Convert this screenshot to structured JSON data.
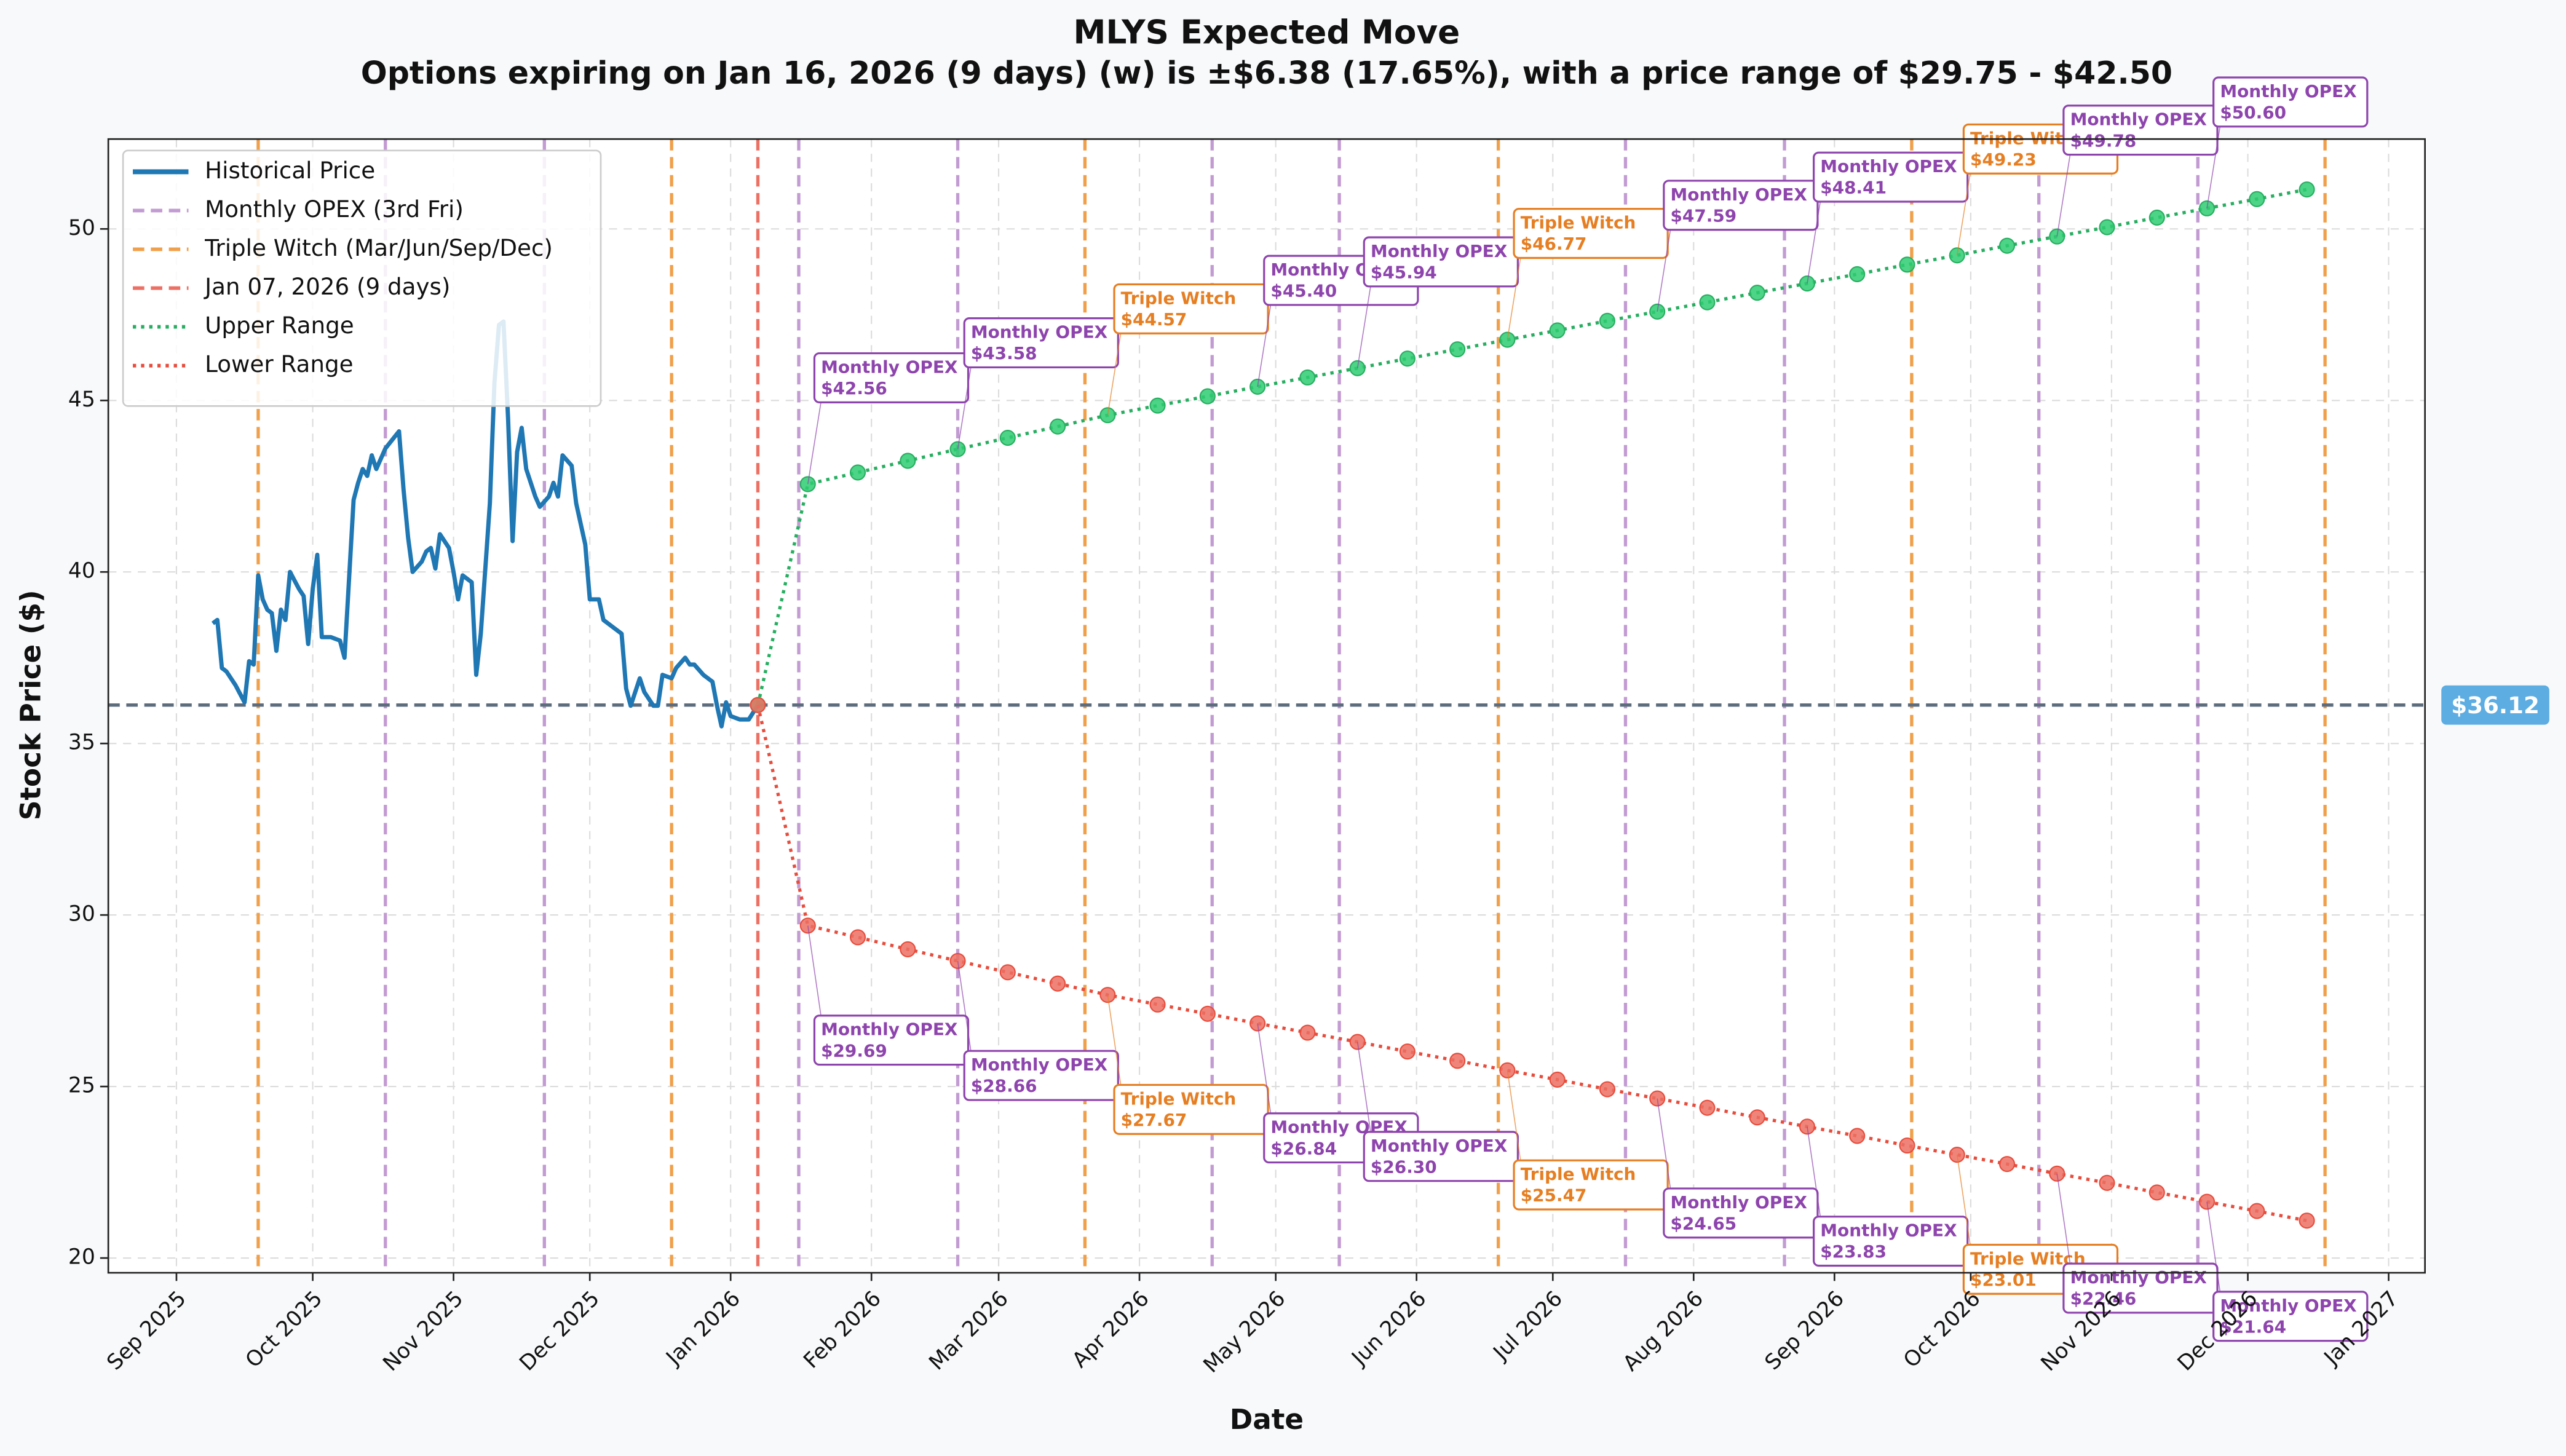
{
  "chart_data": {
    "type": "line",
    "title": "MLYS Expected Move",
    "subtitle": "Options expiring on Jan 16, 2026 (9 days) (w) is ±$6.38 (17.65%), with a price range of $29.75 - $42.50",
    "x_label": "Date",
    "y_label": "Stock Price ($)",
    "xlim": [
      "2025-08-17",
      "2027-01-09"
    ],
    "xticks": [
      {
        "value": "2025-09-01",
        "label": "Sep 2025"
      },
      {
        "value": "2025-10-01",
        "label": "Oct 2025"
      },
      {
        "value": "2025-11-01",
        "label": "Nov 2025"
      },
      {
        "value": "2025-12-01",
        "label": "Dec 2025"
      },
      {
        "value": "2026-01-01",
        "label": "Jan 2026"
      },
      {
        "value": "2026-02-01",
        "label": "Feb 2026"
      },
      {
        "value": "2026-03-01",
        "label": "Mar 2026"
      },
      {
        "value": "2026-04-01",
        "label": "Apr 2026"
      },
      {
        "value": "2026-05-01",
        "label": "May 2026"
      },
      {
        "value": "2026-06-01",
        "label": "Jun 2026"
      },
      {
        "value": "2026-07-01",
        "label": "Jul 2026"
      },
      {
        "value": "2026-08-01",
        "label": "Aug 2026"
      },
      {
        "value": "2026-09-01",
        "label": "Sep 2026"
      },
      {
        "value": "2026-10-01",
        "label": "Oct 2026"
      },
      {
        "value": "2026-11-01",
        "label": "Nov 2026"
      },
      {
        "value": "2026-12-01",
        "label": "Dec 2026"
      },
      {
        "value": "2027-01-01",
        "label": "Jan 2027"
      }
    ],
    "ylim": [
      19.57,
      52.62
    ],
    "yticks": [
      20,
      25,
      30,
      35,
      40,
      45,
      50
    ],
    "grid": true,
    "legend": "upper left",
    "current_price": 36.12,
    "current_price_label": "$36.12",
    "current_price_color": "#5d6d7e",
    "current_price_label_color": "#5dade2",
    "label_styles": {
      "Monthly OPEX": "#8e44ad",
      "Triple Witch": "#e67e22"
    },
    "series": [
      {
        "name": "Historical Price",
        "color": "#1f77b4",
        "style": "solid",
        "x": [
          "2025-09-09",
          "2025-09-10",
          "2025-09-11",
          "2025-09-12",
          "2025-09-14",
          "2025-09-16",
          "2025-09-17",
          "2025-09-18",
          "2025-09-19",
          "2025-09-20",
          "2025-09-21",
          "2025-09-22",
          "2025-09-23",
          "2025-09-24",
          "2025-09-25",
          "2025-09-26",
          "2025-09-28",
          "2025-09-29",
          "2025-09-30",
          "2025-10-01",
          "2025-10-02",
          "2025-10-03",
          "2025-10-05",
          "2025-10-07",
          "2025-10-08",
          "2025-10-10",
          "2025-10-11",
          "2025-10-12",
          "2025-10-13",
          "2025-10-14",
          "2025-10-15",
          "2025-10-17",
          "2025-10-20",
          "2025-10-21",
          "2025-10-22",
          "2025-10-23",
          "2025-10-25",
          "2025-10-26",
          "2025-10-27",
          "2025-10-28",
          "2025-10-29",
          "2025-10-31",
          "2025-11-01",
          "2025-11-02",
          "2025-11-03",
          "2025-11-05",
          "2025-11-06",
          "2025-11-07",
          "2025-11-09",
          "2025-11-10",
          "2025-11-11",
          "2025-11-12",
          "2025-11-13",
          "2025-11-14",
          "2025-11-15",
          "2025-11-16",
          "2025-11-17",
          "2025-11-19",
          "2025-11-20",
          "2025-11-22",
          "2025-11-23",
          "2025-11-24",
          "2025-11-25",
          "2025-11-27",
          "2025-11-28",
          "2025-11-30",
          "2025-12-01",
          "2025-12-03",
          "2025-12-04",
          "2025-12-06",
          "2025-12-08",
          "2025-12-09",
          "2025-12-10",
          "2025-12-12",
          "2025-12-13",
          "2025-12-15",
          "2025-12-16",
          "2025-12-17",
          "2025-12-19",
          "2025-12-20",
          "2025-12-22",
          "2025-12-23",
          "2025-12-24",
          "2025-12-26",
          "2025-12-28",
          "2025-12-29",
          "2025-12-30",
          "2025-12-31",
          "2026-01-01",
          "2026-01-03",
          "2026-01-05",
          "2026-01-07"
        ],
        "values": [
          38.5,
          38.6,
          37.2,
          37.1,
          36.7,
          36.2,
          37.4,
          37.3,
          39.9,
          39.2,
          38.9,
          38.8,
          37.7,
          38.9,
          38.6,
          40.0,
          39.5,
          39.3,
          37.9,
          39.5,
          40.5,
          38.1,
          38.1,
          38.0,
          37.5,
          42.1,
          42.6,
          43.0,
          42.8,
          43.4,
          43.0,
          43.6,
          44.1,
          42.4,
          41.0,
          40.0,
          40.3,
          40.6,
          40.7,
          40.1,
          41.1,
          40.7,
          40.0,
          39.2,
          39.9,
          39.7,
          37.0,
          38.2,
          42.0,
          45.5,
          47.2,
          47.3,
          44.5,
          40.9,
          43.5,
          44.2,
          43.0,
          42.2,
          41.9,
          42.2,
          42.6,
          42.2,
          43.4,
          43.1,
          42.0,
          40.8,
          39.2,
          39.2,
          38.6,
          38.4,
          38.2,
          36.6,
          36.1,
          36.9,
          36.5,
          36.1,
          36.1,
          37.0,
          36.9,
          37.2,
          37.5,
          37.3,
          37.3,
          37.0,
          36.8,
          36.1,
          35.5,
          36.2,
          35.8,
          35.7,
          35.7,
          36.12
        ]
      },
      {
        "name": "Upper Range",
        "color": "#27ae60",
        "marker_color": "#2ecc71",
        "style": "dotted",
        "x": [
          "2026-01-07",
          "2026-01-18",
          "2026-01-29",
          "2026-02-09",
          "2026-02-20",
          "2026-03-03",
          "2026-03-14",
          "2026-03-25",
          "2026-04-05",
          "2026-04-16",
          "2026-04-27",
          "2026-05-08",
          "2026-05-19",
          "2026-05-30",
          "2026-06-10",
          "2026-06-21",
          "2026-07-02",
          "2026-07-13",
          "2026-07-24",
          "2026-08-04",
          "2026-08-15",
          "2026-08-26",
          "2026-09-06",
          "2026-09-17",
          "2026-09-28",
          "2026-10-09",
          "2026-10-20",
          "2026-10-31",
          "2026-11-11",
          "2026-11-22",
          "2026-12-03",
          "2026-12-14"
        ],
        "values": [
          36.12,
          42.56,
          42.9,
          43.24,
          43.58,
          43.91,
          44.24,
          44.57,
          44.85,
          45.12,
          45.4,
          45.67,
          45.94,
          46.22,
          46.49,
          46.77,
          47.04,
          47.32,
          47.59,
          47.86,
          48.14,
          48.41,
          48.68,
          48.96,
          49.23,
          49.51,
          49.78,
          50.05,
          50.33,
          50.6,
          50.87,
          51.15
        ],
        "label_titles": [
          null,
          "Monthly OPEX",
          null,
          null,
          "Monthly OPEX",
          null,
          null,
          "Triple Witch",
          null,
          null,
          "Monthly OPEX",
          null,
          "Monthly OPEX",
          null,
          null,
          "Triple Witch",
          null,
          null,
          "Monthly OPEX",
          null,
          null,
          "Monthly OPEX",
          null,
          null,
          "Triple Witch",
          null,
          "Monthly OPEX",
          null,
          null,
          "Monthly OPEX",
          null,
          null
        ],
        "value_labels": [
          null,
          "$42.56",
          null,
          null,
          "$43.58",
          null,
          null,
          "$44.57",
          null,
          null,
          "$45.40",
          null,
          "$45.94",
          null,
          null,
          "$46.77",
          null,
          null,
          "$47.59",
          null,
          null,
          "$48.41",
          null,
          null,
          "$49.23",
          null,
          "$49.78",
          null,
          null,
          "$50.60",
          null,
          null
        ]
      },
      {
        "name": "Lower Range",
        "color": "#e74c3c",
        "marker_color": "#ec7063",
        "style": "dotted",
        "x": [
          "2026-01-07",
          "2026-01-18",
          "2026-01-29",
          "2026-02-09",
          "2026-02-20",
          "2026-03-03",
          "2026-03-14",
          "2026-03-25",
          "2026-04-05",
          "2026-04-16",
          "2026-04-27",
          "2026-05-08",
          "2026-05-19",
          "2026-05-30",
          "2026-06-10",
          "2026-06-21",
          "2026-07-02",
          "2026-07-13",
          "2026-07-24",
          "2026-08-04",
          "2026-08-15",
          "2026-08-26",
          "2026-09-06",
          "2026-09-17",
          "2026-09-28",
          "2026-10-09",
          "2026-10-20",
          "2026-10-31",
          "2026-11-11",
          "2026-11-22",
          "2026-12-03",
          "2026-12-14"
        ],
        "values": [
          36.12,
          29.69,
          29.35,
          29.0,
          28.66,
          28.33,
          28.0,
          27.67,
          27.39,
          27.12,
          26.84,
          26.57,
          26.3,
          26.02,
          25.75,
          25.47,
          25.2,
          24.92,
          24.65,
          24.38,
          24.1,
          23.83,
          23.56,
          23.28,
          23.01,
          22.74,
          22.46,
          22.19,
          21.91,
          21.64,
          21.37,
          21.09
        ],
        "label_titles": [
          null,
          "Monthly OPEX",
          null,
          null,
          "Monthly OPEX",
          null,
          null,
          "Triple Witch",
          null,
          null,
          "Monthly OPEX",
          null,
          "Monthly OPEX",
          null,
          null,
          "Triple Witch",
          null,
          null,
          "Monthly OPEX",
          null,
          null,
          "Monthly OPEX",
          null,
          null,
          "Triple Witch",
          null,
          "Monthly OPEX",
          null,
          null,
          "Monthly OPEX",
          null,
          null
        ],
        "value_labels": [
          null,
          "$29.69",
          null,
          null,
          "$28.66",
          null,
          null,
          "$27.67",
          null,
          null,
          "$26.84",
          null,
          "$26.30",
          null,
          null,
          "$25.47",
          null,
          null,
          "$24.65",
          null,
          null,
          "$23.83",
          null,
          null,
          "$23.01",
          null,
          "$22.46",
          null,
          null,
          "$21.64",
          null,
          null
        ]
      }
    ],
    "vlines": [
      {
        "name": "Monthly OPEX (3rd Fri)",
        "color": "#c39bd3",
        "style": "dashed",
        "dates": [
          "2025-10-17",
          "2025-11-21",
          "2026-01-16",
          "2026-02-20",
          "2026-04-17",
          "2026-05-15",
          "2026-07-17",
          "2026-08-21",
          "2026-10-16",
          "2026-11-20"
        ]
      },
      {
        "name": "Triple Witch (Mar/Jun/Sep/Dec)",
        "color": "#f0a04b",
        "style": "dashed",
        "dates": [
          "2025-09-19",
          "2025-12-19",
          "2026-03-20",
          "2026-06-19",
          "2026-09-18",
          "2026-12-18"
        ]
      },
      {
        "name": "Jan 07, 2026 (9 days)",
        "color": "#ec7063",
        "style": "dashed",
        "dates": [
          "2026-01-07"
        ]
      }
    ]
  }
}
